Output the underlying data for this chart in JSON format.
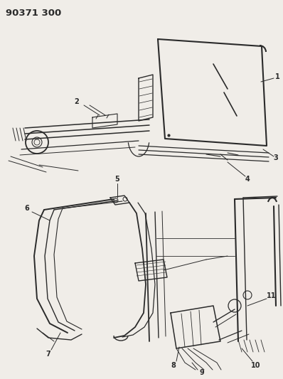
{
  "bg_color": "#f0ede8",
  "line_color": "#2a2a2a",
  "fig_width": 3.98,
  "fig_height": 5.33,
  "dpi": 100,
  "header_text": "90371 300",
  "header_fontsize": 9.5
}
